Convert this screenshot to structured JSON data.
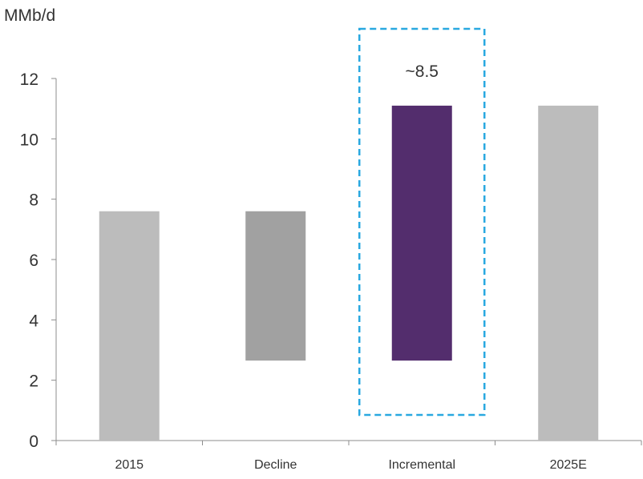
{
  "chart_data": {
    "type": "bar",
    "subtype": "waterfall",
    "ylabel": "MMb/d",
    "ylim": [
      0,
      12
    ],
    "yticks": [
      0,
      2,
      4,
      6,
      8,
      10,
      12
    ],
    "categories": [
      "2015",
      "Decline",
      "Incremental",
      "2025E"
    ],
    "bars": [
      {
        "category": "2015",
        "start": 0,
        "end": 7.6,
        "color": "#bcbcbc"
      },
      {
        "category": "Decline",
        "start": 2.65,
        "end": 7.6,
        "color": "#a1a1a1"
      },
      {
        "category": "Incremental",
        "start": 2.65,
        "end": 11.1,
        "color": "#532d6d"
      },
      {
        "category": "2025E",
        "start": 0,
        "end": 11.1,
        "color": "#bcbcbc"
      }
    ],
    "annotation": {
      "text": "~8.5",
      "category": "Incremental",
      "box_color": "#29a8e0",
      "box_style": "dashed"
    },
    "grid": false,
    "legend": "none"
  }
}
